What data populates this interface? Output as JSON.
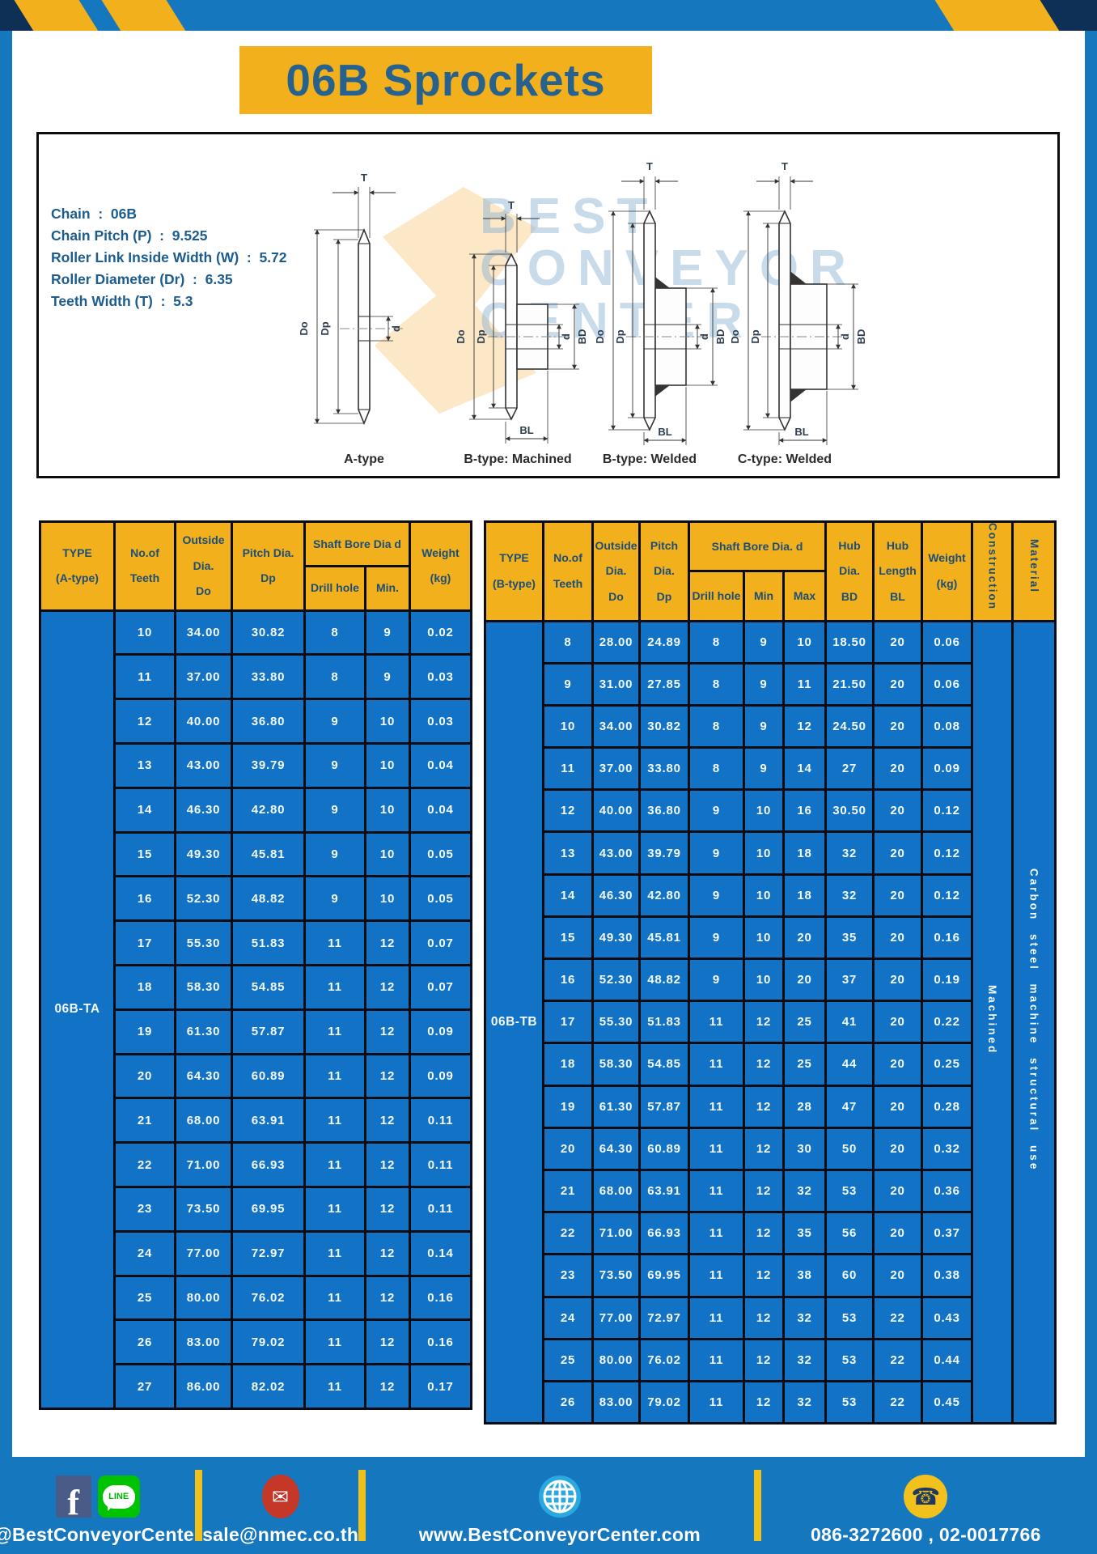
{
  "title": "06B Sprockets",
  "specs": {
    "lines": [
      "Chain  :  06B",
      "Chain Pitch (P)  :  9.525",
      "Roller Link Inside Width (W)  :  5.72",
      "Roller Diameter (Dr)  :  6.35",
      "Teeth Width (T)  :  5.3"
    ]
  },
  "diagram": {
    "captions": [
      "A-type",
      "B-type: Machined",
      "B-type: Welded",
      "C-type: Welded"
    ],
    "dim_labels": {
      "t": "T",
      "do": "Do",
      "dp": "Dp",
      "d": "d",
      "bd": "BD",
      "bl": "BL"
    },
    "watermark": [
      "BEST",
      "CONVEYOR",
      "CENTER"
    ]
  },
  "left_table": {
    "headers": {
      "type": "TYPE\n(A-type)",
      "teeth": "No.of\nTeeth",
      "outside": "Outside\nDia.\nDo",
      "pitch": "Pitch Dia.\nDp",
      "shaft": "Shaft Bore Dia d",
      "drill": "Drill hole",
      "min": "Min.",
      "weight": "Weight\n(kg)"
    },
    "type_value": "06B-TA",
    "rows": [
      [
        "10",
        "34.00",
        "30.82",
        "8",
        "9",
        "0.02"
      ],
      [
        "11",
        "37.00",
        "33.80",
        "8",
        "9",
        "0.03"
      ],
      [
        "12",
        "40.00",
        "36.80",
        "9",
        "10",
        "0.03"
      ],
      [
        "13",
        "43.00",
        "39.79",
        "9",
        "10",
        "0.04"
      ],
      [
        "14",
        "46.30",
        "42.80",
        "9",
        "10",
        "0.04"
      ],
      [
        "15",
        "49.30",
        "45.81",
        "9",
        "10",
        "0.05"
      ],
      [
        "16",
        "52.30",
        "48.82",
        "9",
        "10",
        "0.05"
      ],
      [
        "17",
        "55.30",
        "51.83",
        "11",
        "12",
        "0.07"
      ],
      [
        "18",
        "58.30",
        "54.85",
        "11",
        "12",
        "0.07"
      ],
      [
        "19",
        "61.30",
        "57.87",
        "11",
        "12",
        "0.09"
      ],
      [
        "20",
        "64.30",
        "60.89",
        "11",
        "12",
        "0.09"
      ],
      [
        "21",
        "68.00",
        "63.91",
        "11",
        "12",
        "0.11"
      ],
      [
        "22",
        "71.00",
        "66.93",
        "11",
        "12",
        "0.11"
      ],
      [
        "23",
        "73.50",
        "69.95",
        "11",
        "12",
        "0.11"
      ],
      [
        "24",
        "77.00",
        "72.97",
        "11",
        "12",
        "0.14"
      ],
      [
        "25",
        "80.00",
        "76.02",
        "11",
        "12",
        "0.16"
      ],
      [
        "26",
        "83.00",
        "79.02",
        "11",
        "12",
        "0.16"
      ],
      [
        "27",
        "86.00",
        "82.02",
        "11",
        "12",
        "0.17"
      ]
    ]
  },
  "right_table": {
    "headers": {
      "type": "TYPE\n(B-type)",
      "teeth": "No.of\nTeeth",
      "outside": "Outside\nDia.\nDo",
      "pitch": "Pitch\nDia.\nDp",
      "shaft": "Shaft Bore Dia.  d",
      "drill": "Drill hole",
      "min": "Min",
      "max": "Max",
      "hub_dia": "Hub\nDia.\nBD",
      "hub_len": "Hub\nLength\nBL",
      "weight": "Weight\n(kg)",
      "construction": "Construction",
      "material": "Material"
    },
    "type_value": "06B-TB",
    "construction_value": "Machined",
    "material_value": "Carbon steel machine structural use",
    "rows": [
      [
        "8",
        "28.00",
        "24.89",
        "8",
        "9",
        "10",
        "18.50",
        "20",
        "0.06"
      ],
      [
        "9",
        "31.00",
        "27.85",
        "8",
        "9",
        "11",
        "21.50",
        "20",
        "0.06"
      ],
      [
        "10",
        "34.00",
        "30.82",
        "8",
        "9",
        "12",
        "24.50",
        "20",
        "0.08"
      ],
      [
        "11",
        "37.00",
        "33.80",
        "8",
        "9",
        "14",
        "27",
        "20",
        "0.09"
      ],
      [
        "12",
        "40.00",
        "36.80",
        "9",
        "10",
        "16",
        "30.50",
        "20",
        "0.12"
      ],
      [
        "13",
        "43.00",
        "39.79",
        "9",
        "10",
        "18",
        "32",
        "20",
        "0.12"
      ],
      [
        "14",
        "46.30",
        "42.80",
        "9",
        "10",
        "18",
        "32",
        "20",
        "0.12"
      ],
      [
        "15",
        "49.30",
        "45.81",
        "9",
        "10",
        "20",
        "35",
        "20",
        "0.16"
      ],
      [
        "16",
        "52.30",
        "48.82",
        "9",
        "10",
        "20",
        "37",
        "20",
        "0.19"
      ],
      [
        "17",
        "55.30",
        "51.83",
        "11",
        "12",
        "25",
        "41",
        "20",
        "0.22"
      ],
      [
        "18",
        "58.30",
        "54.85",
        "11",
        "12",
        "25",
        "44",
        "20",
        "0.25"
      ],
      [
        "19",
        "61.30",
        "57.87",
        "11",
        "12",
        "28",
        "47",
        "20",
        "0.28"
      ],
      [
        "20",
        "64.30",
        "60.89",
        "11",
        "12",
        "30",
        "50",
        "20",
        "0.32"
      ],
      [
        "21",
        "68.00",
        "63.91",
        "11",
        "12",
        "32",
        "53",
        "20",
        "0.36"
      ],
      [
        "22",
        "71.00",
        "66.93",
        "11",
        "12",
        "35",
        "56",
        "20",
        "0.37"
      ],
      [
        "23",
        "73.50",
        "69.95",
        "11",
        "12",
        "38",
        "60",
        "20",
        "0.38"
      ],
      [
        "24",
        "77.00",
        "72.97",
        "11",
        "12",
        "32",
        "53",
        "22",
        "0.43"
      ],
      [
        "25",
        "80.00",
        "76.02",
        "11",
        "12",
        "32",
        "53",
        "22",
        "0.44"
      ],
      [
        "26",
        "83.00",
        "79.02",
        "11",
        "12",
        "32",
        "53",
        "22",
        "0.45"
      ]
    ]
  },
  "footer": {
    "fb_label": "f",
    "line_label": "LINE",
    "social_text": "@BestConveyorCenter",
    "email": "sale@nmec.co.th",
    "website": "www.BestConveyorCenter.com",
    "phones": "086-3272600 , 02-0017766",
    "mail_glyph": "✉",
    "phone_glyph": "☎"
  },
  "colors": {
    "frame": "#1577bd",
    "cell": "#1273c6",
    "yellow": "#f1b01c",
    "navy": "#1c4e78",
    "title": "#27628f",
    "border": "#0b0b12",
    "white": "#f4fafd"
  }
}
